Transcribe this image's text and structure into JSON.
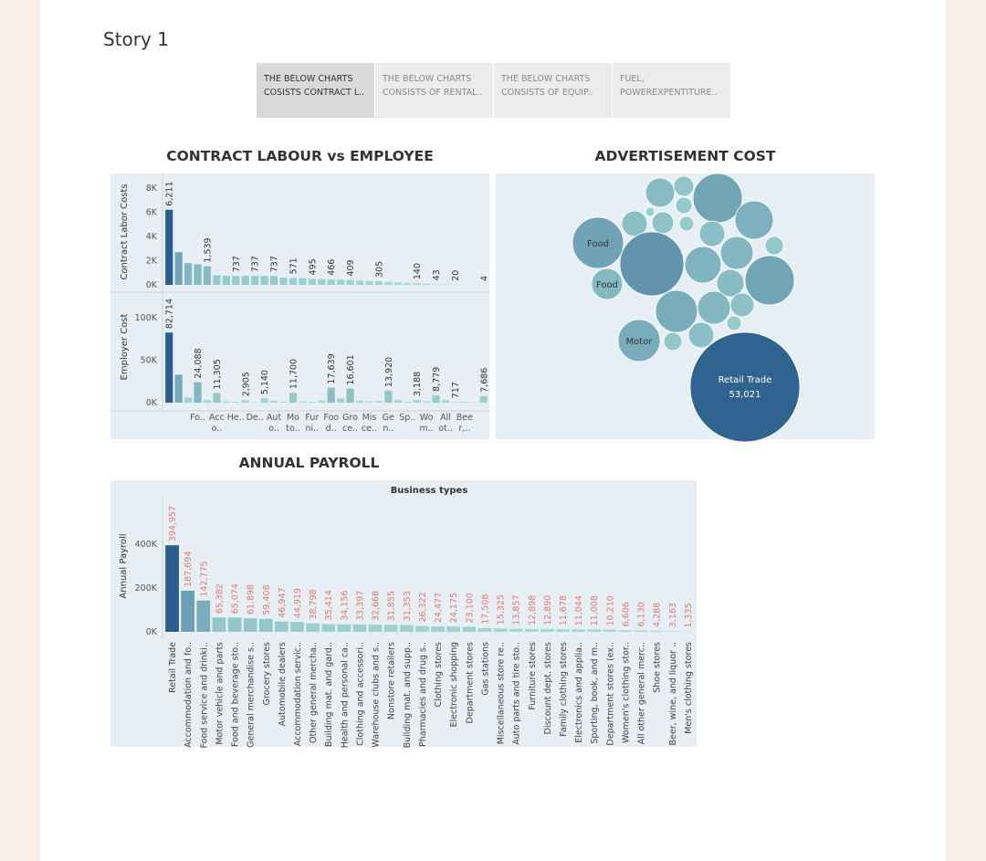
{
  "story_title": "Story 1",
  "tabs": [
    "THE BELOW CHARTS\nCOSISTS CONTRACT L..",
    "THE BELOW CHARTS\nCONSISTS OF RENTAL..",
    "THE BELOW CHARTS\nCONSISTS OF EQUIP..",
    "FUEL,\nPOWEREXPENTITURE.."
  ],
  "selected_tab": 0,
  "chart_data": [
    {
      "type": "bar",
      "title": "CONTRACT LABOUR vs EMPLOYEE",
      "y_label": "Contract Labor Costs",
      "values": [
        6211,
        2700,
        1800,
        1700,
        1539,
        800,
        750,
        737,
        737,
        737,
        737,
        737,
        600,
        571,
        550,
        495,
        480,
        466,
        430,
        409,
        350,
        320,
        305,
        250,
        200,
        160,
        140,
        100,
        43,
        30,
        20,
        10,
        6,
        4
      ],
      "value_labels": [
        "6,211",
        null,
        null,
        null,
        "1,539",
        null,
        null,
        "737",
        null,
        "737",
        null,
        "737",
        null,
        "571",
        null,
        "495",
        null,
        "466",
        null,
        "409",
        null,
        null,
        "305",
        null,
        null,
        null,
        "140",
        null,
        "43",
        null,
        "20",
        null,
        null,
        "4"
      ],
      "ylim": [
        0,
        9000
      ],
      "yticks": [
        {
          "value": 0,
          "label": "0K"
        },
        {
          "value": 2000,
          "label": "2K"
        },
        {
          "value": 4000,
          "label": "4K"
        },
        {
          "value": 6000,
          "label": "6K"
        },
        {
          "value": 8000,
          "label": "8K"
        }
      ],
      "color_range": [
        "#a6dbd6",
        "#2b5d8c"
      ]
    },
    {
      "type": "bar",
      "y_label": "Employer Cost",
      "categories": [
        null,
        null,
        null,
        "Fo..",
        null,
        "Acc\no..",
        null,
        "He..",
        null,
        "De..",
        null,
        "Aut\no..",
        null,
        "Mo\nto..",
        null,
        "Fur\nni..",
        null,
        "Foo\nd..",
        null,
        "Gro\nce..",
        null,
        "Mis\nce..",
        null,
        "Ge\nn..",
        null,
        "Sp..",
        null,
        "Wo\nm..",
        null,
        "All\not..",
        null,
        "Bee\nr,..",
        null,
        null
      ],
      "values": [
        82714,
        33000,
        6000,
        24088,
        3000,
        11305,
        1500,
        1000,
        2905,
        500,
        5140,
        2000,
        1000,
        11700,
        1500,
        1200,
        2500,
        17639,
        5000,
        16601,
        2500,
        1500,
        2000,
        13920,
        3000,
        1000,
        3188,
        1500,
        8779,
        3000,
        717,
        1000,
        500,
        7686
      ],
      "value_labels": [
        "82,714",
        null,
        null,
        "24,088",
        null,
        "11,305",
        null,
        null,
        "2,905",
        null,
        "5,140",
        null,
        null,
        "11,700",
        null,
        null,
        null,
        "17,639",
        null,
        "16,601",
        null,
        null,
        null,
        "13,920",
        null,
        null,
        "3,188",
        null,
        "8,779",
        null,
        "717",
        null,
        null,
        "7,686"
      ],
      "ylim": [
        0,
        125000
      ],
      "yticks": [
        {
          "value": 0,
          "label": "0K"
        },
        {
          "value": 50000,
          "label": "50K"
        },
        {
          "value": 100000,
          "label": "100K"
        }
      ],
      "color_range": [
        "#a6dbd6",
        "#2b5d8c"
      ]
    },
    {
      "type": "bubble",
      "title": "ADVERTISEMENT COST",
      "categories": [
        null,
        null,
        null,
        null,
        null,
        null,
        null,
        null,
        null,
        "Food",
        null,
        null,
        null,
        null,
        null,
        null,
        "Food",
        null,
        null,
        null,
        null,
        "Motor",
        null,
        null,
        null,
        "Retail Trade"
      ],
      "values": [
        3770,
        1782,
        10737,
        1193,
        368,
        2121,
        2887,
        942,
        6495,
        11547,
        2887,
        18041,
        4772,
        1473,
        5891,
        10737,
        4256,
        3314,
        7791,
        4772,
        2489,
        7791,
        942,
        1473,
        2887,
        53021
      ],
      "value_labels": [
        null,
        null,
        null,
        null,
        null,
        null,
        null,
        null,
        null,
        null,
        null,
        null,
        null,
        null,
        null,
        null,
        null,
        null,
        null,
        null,
        null,
        null,
        null,
        null,
        null,
        "53,021"
      ],
      "color_range": [
        "#a6dbd6",
        "#2b5d8c"
      ]
    },
    {
      "type": "bar",
      "title": "ANNUAL PAYROLL",
      "x_label": "Business types",
      "y_label": "Annual Payroll",
      "categories": [
        "Retail Trade",
        "Accommodation and fo..",
        "Food service and drinki..",
        "Motor vehicle and parts",
        "Food and beverage sto..",
        "General merchandise s..",
        "Grocery stores",
        "Automobile dealers",
        "Accommodation servic..",
        "Other general mercha..",
        "Building mat. and gard..",
        "Health and personal ca..",
        "Clothing and accessori..",
        "Warehouse clubs and s..",
        "Nonstore retailers",
        "Building mat. and supp..",
        "Pharmacies and drug s..",
        "Clothing stores",
        "Electronic shopping",
        "Department stores",
        "Gas stations",
        "Miscellaneous store re..",
        "Auto parts and tire sto..",
        "Furniture stores",
        "Discount dept. stores",
        "Family clothing stores",
        "Electronics and applia..",
        "Sporting, book, and m..",
        "Department stores (ex..",
        "Women's clothing stor..",
        "All other general merc..",
        "Shoe stores",
        "Beer, wine, and liquor ..",
        "Men's clothing stores"
      ],
      "values": [
        394957,
        187694,
        142775,
        65382,
        65074,
        61898,
        59408,
        46947,
        44919,
        38798,
        35414,
        34156,
        33397,
        32668,
        31855,
        31353,
        26322,
        24477,
        24175,
        23100,
        17508,
        15325,
        13857,
        12898,
        12890,
        11678,
        11044,
        11008,
        10210,
        6606,
        6130,
        4288,
        3163,
        1335
      ],
      "value_labels": [
        "394,957",
        "187,694",
        "142,775",
        "65,382",
        "65,074",
        "61,898",
        "59,408",
        "46,947",
        "44,919",
        "38,798",
        "35,414",
        "34,156",
        "33,397",
        "32,668",
        "31,855",
        "31,353",
        "26,322",
        "24,477",
        "24,175",
        "23,100",
        "17,508",
        "15,325",
        "13,857",
        "12,898",
        "12,890",
        "11,678",
        "11,044",
        "11,008",
        "10,210",
        "6,606",
        "6,130",
        "4,288",
        "3,163",
        "1,335"
      ],
      "ylim": [
        0,
        600000
      ],
      "yticks": [
        {
          "value": 0,
          "label": "0K"
        },
        {
          "value": 200000,
          "label": "200K"
        },
        {
          "value": 400000,
          "label": "400K"
        }
      ],
      "color_range": [
        "#a6dbd6",
        "#2b5d8c"
      ]
    }
  ]
}
